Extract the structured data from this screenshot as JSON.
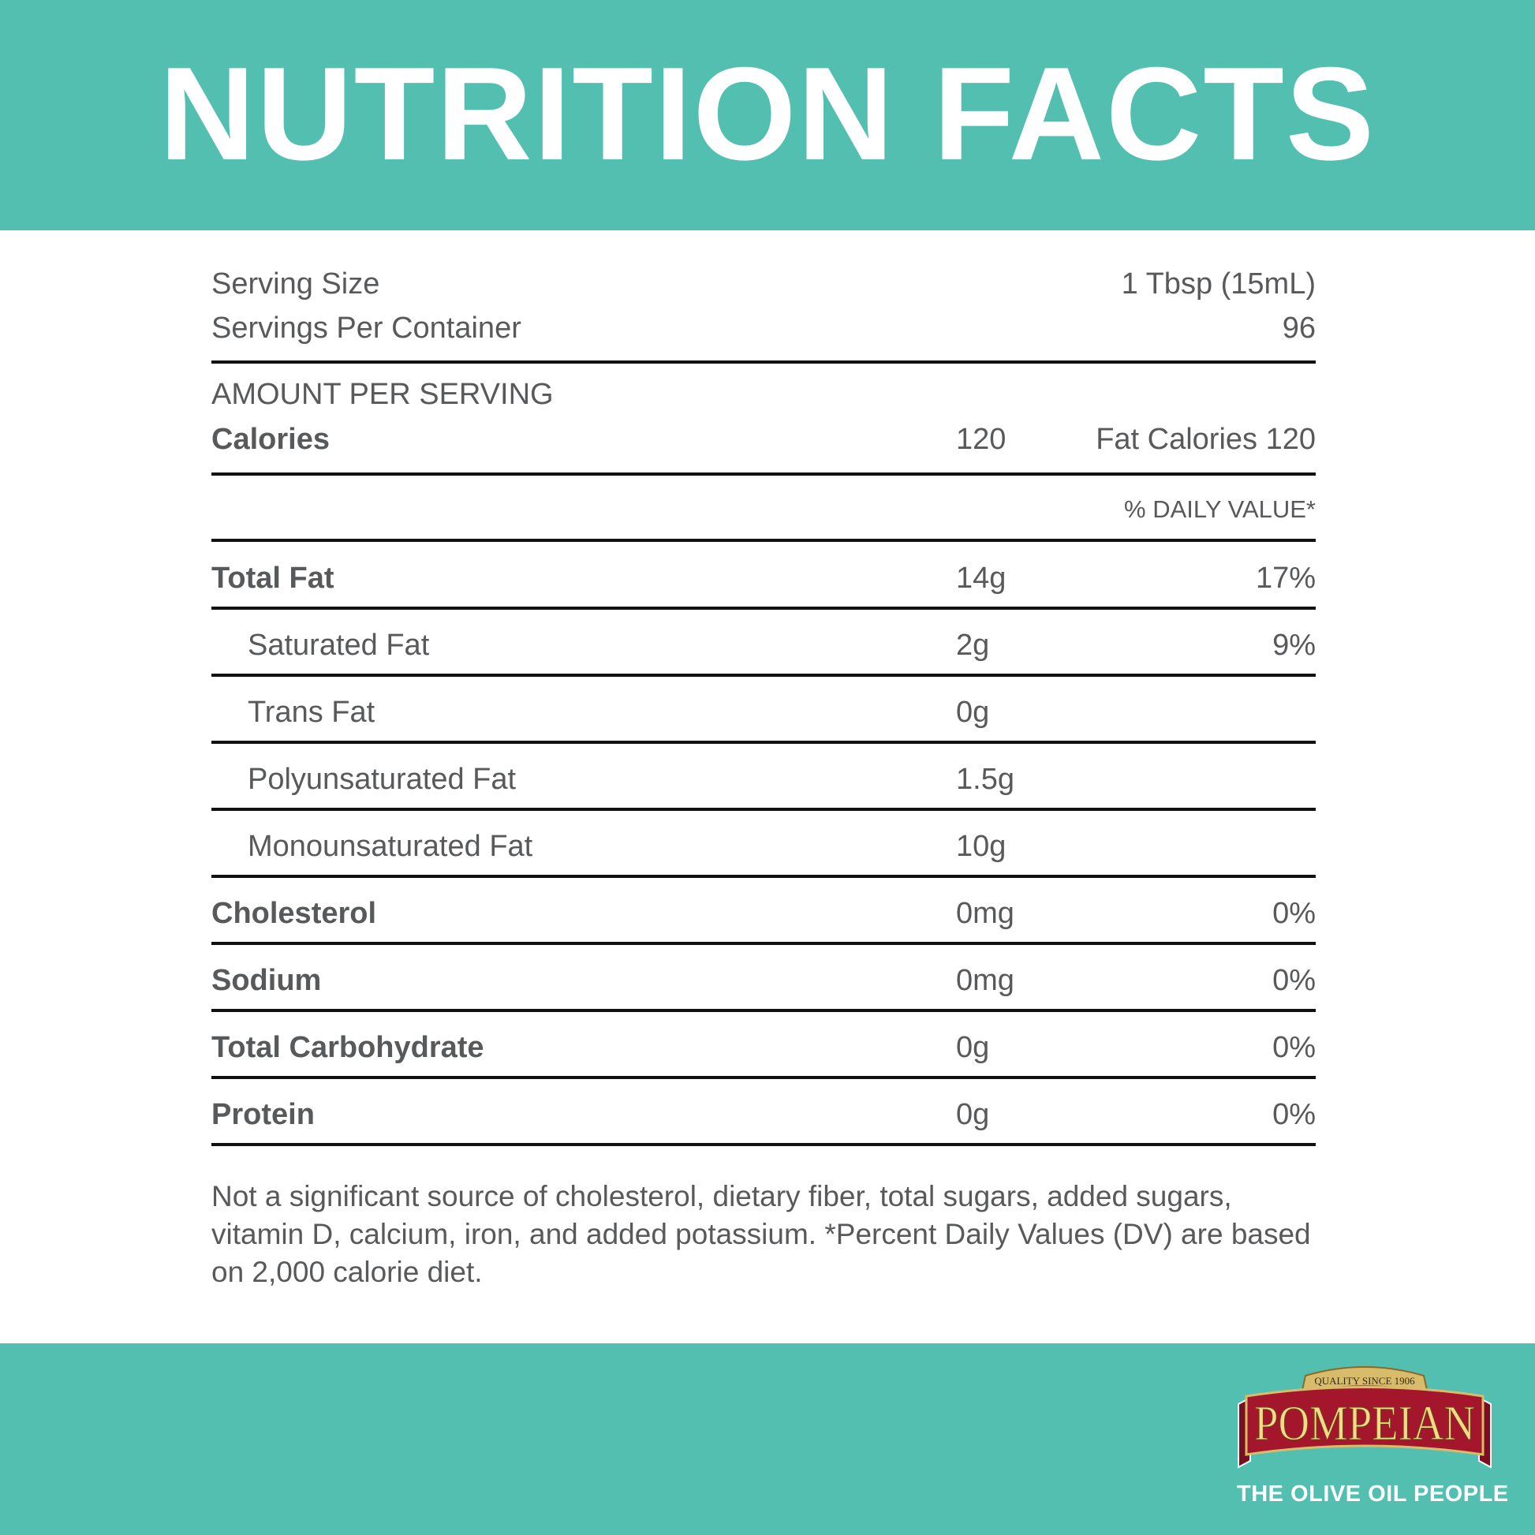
{
  "header": {
    "title": "NUTRITION FACTS"
  },
  "serving": {
    "size_label": "Serving Size",
    "size_value": "1 Tbsp (15mL)",
    "per_container_label": "Servings Per Container",
    "per_container_value": "96"
  },
  "amount": {
    "heading": "AMOUNT PER SERVING",
    "calories_label": "Calories",
    "calories_value": "120",
    "fat_calories": "Fat Calories 120"
  },
  "dv_heading": "% DAILY VALUE*",
  "nutrients": [
    {
      "label": "Total Fat",
      "amount": "14g",
      "dv": "17%",
      "bold": true
    },
    {
      "label": "Saturated Fat",
      "amount": "2g",
      "dv": "9%",
      "bold": false
    },
    {
      "label": "Trans Fat",
      "amount": "0g",
      "dv": "",
      "bold": false
    },
    {
      "label": "Polyunsaturated Fat",
      "amount": "1.5g",
      "dv": "",
      "bold": false
    },
    {
      "label": "Monounsaturated Fat",
      "amount": "10g",
      "dv": "",
      "bold": false
    },
    {
      "label": "Cholesterol",
      "amount": "0mg",
      "dv": "0%",
      "bold": true
    },
    {
      "label": "Sodium",
      "amount": "0mg",
      "dv": "0%",
      "bold": true
    },
    {
      "label": "Total Carbohydrate",
      "amount": "0g",
      "dv": "0%",
      "bold": true
    },
    {
      "label": "Protein",
      "amount": "0g",
      "dv": "0%",
      "bold": true
    }
  ],
  "footnote": "Not a significant source of cholesterol, dietary fiber, total sugars, added sugars, vitamin D, calcium, iron, and added potassium. *Percent Daily Values (DV) are based on 2,000 calorie diet.",
  "brand": {
    "logo_text": "POMPEIAN",
    "logo_banner": "QUALITY SINCE 1906",
    "tagline": "THE OLIVE OIL PEOPLE"
  },
  "colors": {
    "teal": "#52bfb0",
    "text": "#58595b",
    "logo_red": "#a3162b",
    "logo_gold": "#f3d98a"
  }
}
